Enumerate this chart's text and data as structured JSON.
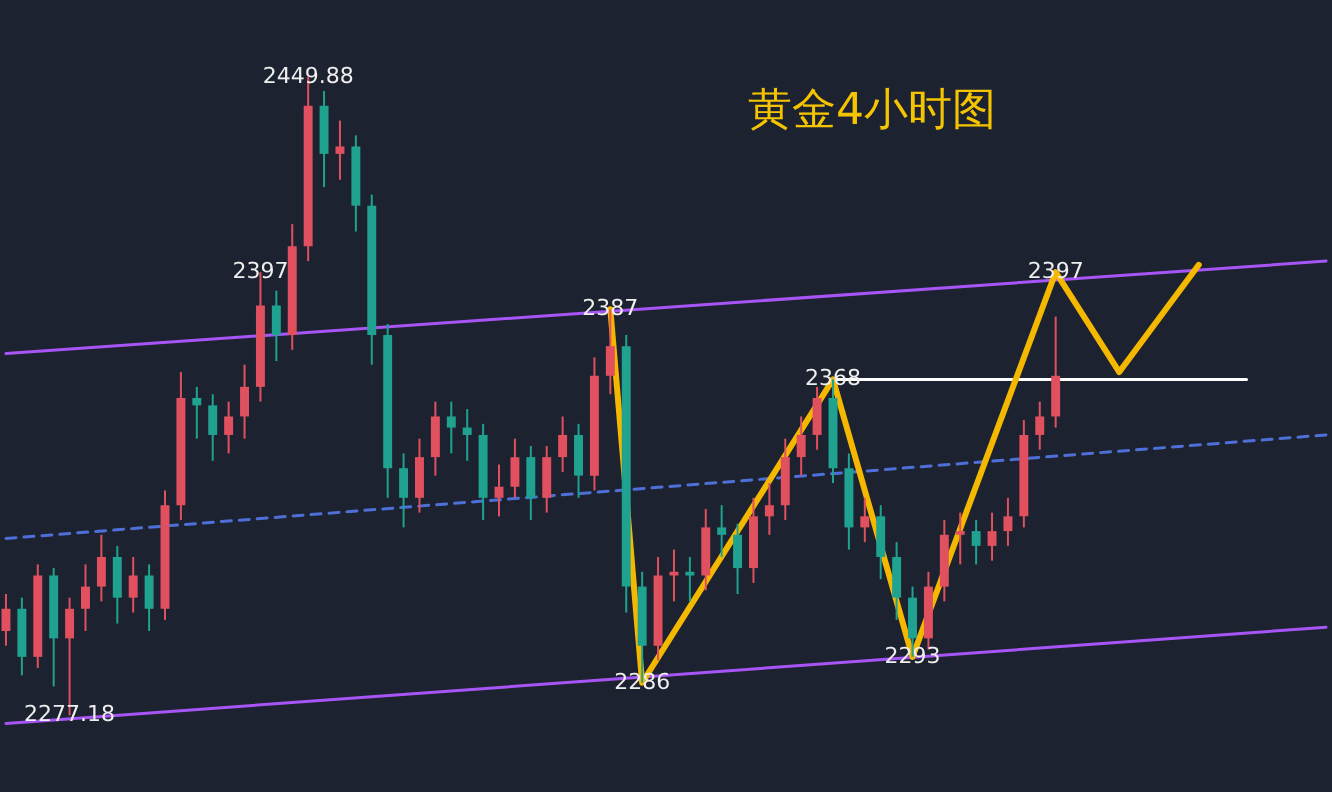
{
  "chart_data": {
    "type": "candlestick",
    "title": "黄金4小时图",
    "categories": [
      null,
      null,
      null,
      null,
      null,
      null,
      null,
      null,
      null,
      null,
      null,
      null,
      null,
      null,
      null,
      null,
      null,
      null,
      null,
      null,
      null,
      null,
      null,
      null,
      null,
      null,
      null,
      null,
      null,
      null,
      null,
      null,
      null,
      null,
      null,
      null,
      null,
      null,
      null,
      null,
      null,
      null,
      null,
      null,
      null,
      null,
      null,
      null,
      null,
      null,
      null,
      null,
      null,
      null,
      null,
      null,
      null,
      null,
      null,
      null,
      null,
      null,
      null,
      null,
      null,
      null,
      null,
      null,
      null,
      null,
      null,
      null,
      null,
      null,
      null,
      null,
      null,
      null,
      null,
      null,
      null,
      null,
      null,
      null
    ],
    "ohlc": [
      [
        2300,
        2310,
        2296,
        2306
      ],
      [
        2306,
        2309,
        2288,
        2293
      ],
      [
        2293,
        2318,
        2290,
        2315
      ],
      [
        2315,
        2317,
        2285,
        2298
      ],
      [
        2298,
        2309,
        2277.18,
        2306
      ],
      [
        2306,
        2318,
        2300,
        2312
      ],
      [
        2312,
        2326,
        2308,
        2320
      ],
      [
        2320,
        2323,
        2302,
        2309
      ],
      [
        2309,
        2320,
        2305,
        2315
      ],
      [
        2315,
        2318,
        2300,
        2306
      ],
      [
        2306,
        2338,
        2303,
        2334
      ],
      [
        2334,
        2370,
        2330,
        2363
      ],
      [
        2363,
        2366,
        2352,
        2361
      ],
      [
        2361,
        2364,
        2346,
        2353
      ],
      [
        2353,
        2362,
        2348,
        2358
      ],
      [
        2358,
        2372,
        2352,
        2366
      ],
      [
        2366,
        2397,
        2362,
        2388
      ],
      [
        2388,
        2392,
        2373,
        2380
      ],
      [
        2380,
        2410,
        2376,
        2404
      ],
      [
        2404,
        2449.88,
        2400,
        2442
      ],
      [
        2442,
        2446,
        2420,
        2429
      ],
      [
        2429,
        2438,
        2422,
        2431
      ],
      [
        2431,
        2434,
        2408,
        2415
      ],
      [
        2415,
        2418,
        2372,
        2380
      ],
      [
        2380,
        2383,
        2336,
        2344
      ],
      [
        2344,
        2348,
        2328,
        2336
      ],
      [
        2336,
        2352,
        2332,
        2347
      ],
      [
        2347,
        2362,
        2342,
        2358
      ],
      [
        2358,
        2362,
        2348,
        2355
      ],
      [
        2355,
        2360,
        2346,
        2353
      ],
      [
        2353,
        2356,
        2330,
        2336
      ],
      [
        2336,
        2345,
        2331,
        2339
      ],
      [
        2339,
        2352,
        2336,
        2347
      ],
      [
        2347,
        2350,
        2330,
        2336
      ],
      [
        2336,
        2350,
        2332,
        2347
      ],
      [
        2347,
        2358,
        2343,
        2353
      ],
      [
        2353,
        2356,
        2336,
        2342
      ],
      [
        2342,
        2374,
        2338,
        2369
      ],
      [
        2369,
        2387,
        2364,
        2377
      ],
      [
        2377,
        2380,
        2305,
        2312
      ],
      [
        2312,
        2316,
        2286,
        2296
      ],
      [
        2296,
        2320,
        2292,
        2315
      ],
      [
        2315,
        2322,
        2308,
        2316
      ],
      [
        2316,
        2320,
        2308,
        2315
      ],
      [
        2315,
        2333,
        2311,
        2328
      ],
      [
        2328,
        2334,
        2320,
        2326
      ],
      [
        2326,
        2329,
        2310,
        2317
      ],
      [
        2317,
        2336,
        2313,
        2331
      ],
      [
        2331,
        2340,
        2326,
        2334
      ],
      [
        2334,
        2352,
        2330,
        2347
      ],
      [
        2347,
        2358,
        2342,
        2353
      ],
      [
        2353,
        2366,
        2349,
        2363
      ],
      [
        2363,
        2368,
        2340,
        2344
      ],
      [
        2344,
        2348,
        2322,
        2328
      ],
      [
        2328,
        2336,
        2324,
        2331
      ],
      [
        2331,
        2334,
        2314,
        2320
      ],
      [
        2320,
        2324,
        2303,
        2309
      ],
      [
        2309,
        2312,
        2293,
        2298
      ],
      [
        2298,
        2316,
        2295,
        2312
      ],
      [
        2312,
        2330,
        2308,
        2326
      ],
      [
        2326,
        2332,
        2318,
        2327
      ],
      [
        2327,
        2330,
        2318,
        2323
      ],
      [
        2323,
        2332,
        2319,
        2327
      ],
      [
        2327,
        2336,
        2323,
        2331
      ],
      [
        2331,
        2357,
        2328,
        2353
      ],
      [
        2353,
        2362,
        2349,
        2358
      ],
      [
        2358,
        2385,
        2355,
        2369
      ],
      null,
      null,
      null,
      null,
      null,
      null,
      null,
      null,
      null,
      null,
      null,
      null,
      null,
      null,
      null,
      null,
      null
    ],
    "series": [
      {
        "type": "line",
        "color": "#a855f7",
        "values": [
          2375,
          null,
          null,
          null,
          null,
          null,
          null,
          null,
          null,
          null,
          null,
          null,
          null,
          null,
          null,
          null,
          null,
          null,
          null,
          null,
          null,
          null,
          null,
          null,
          null,
          null,
          null,
          null,
          null,
          null,
          null,
          null,
          null,
          null,
          null,
          null,
          null,
          null,
          null,
          null,
          null,
          null,
          null,
          null,
          null,
          null,
          null,
          null,
          null,
          null,
          null,
          null,
          null,
          null,
          null,
          null,
          null,
          null,
          null,
          null,
          null,
          null,
          null,
          null,
          null,
          null,
          null,
          null,
          null,
          null,
          null,
          null,
          null,
          null,
          null,
          null,
          null,
          null,
          null,
          null,
          null,
          null,
          null,
          2400
        ]
      },
      {
        "type": "line",
        "color": "#a855f7",
        "values": [
          2275,
          null,
          null,
          null,
          null,
          null,
          null,
          null,
          null,
          null,
          null,
          null,
          null,
          null,
          null,
          null,
          null,
          null,
          null,
          null,
          null,
          null,
          null,
          null,
          null,
          null,
          null,
          null,
          null,
          null,
          null,
          null,
          null,
          null,
          null,
          null,
          null,
          null,
          null,
          null,
          null,
          null,
          null,
          null,
          null,
          null,
          null,
          null,
          null,
          null,
          null,
          null,
          null,
          null,
          null,
          null,
          null,
          null,
          null,
          null,
          null,
          null,
          null,
          null,
          null,
          null,
          null,
          null,
          null,
          null,
          null,
          null,
          null,
          null,
          null,
          null,
          null,
          null,
          null,
          null,
          null,
          null,
          null,
          2301
        ]
      },
      {
        "type": "line",
        "color": "#4f6fd8",
        "line_style": "dashed",
        "values": [
          2325,
          null,
          null,
          null,
          null,
          null,
          null,
          null,
          null,
          null,
          null,
          null,
          null,
          null,
          null,
          null,
          null,
          null,
          null,
          null,
          null,
          null,
          null,
          null,
          null,
          null,
          null,
          null,
          null,
          null,
          null,
          null,
          null,
          null,
          null,
          null,
          null,
          null,
          null,
          null,
          null,
          null,
          null,
          null,
          null,
          null,
          null,
          null,
          null,
          null,
          null,
          null,
          null,
          null,
          null,
          null,
          null,
          null,
          null,
          null,
          null,
          null,
          null,
          null,
          null,
          null,
          null,
          null,
          null,
          null,
          null,
          null,
          null,
          null,
          null,
          null,
          null,
          null,
          null,
          null,
          null,
          null,
          null,
          2353
        ]
      },
      {
        "type": "line",
        "color": "#ffffff",
        "values": [
          null,
          null,
          null,
          null,
          null,
          null,
          null,
          null,
          null,
          null,
          null,
          null,
          null,
          null,
          null,
          null,
          null,
          null,
          null,
          null,
          null,
          null,
          null,
          null,
          null,
          null,
          null,
          null,
          null,
          null,
          null,
          null,
          null,
          null,
          null,
          null,
          null,
          null,
          null,
          null,
          null,
          null,
          null,
          null,
          null,
          null,
          null,
          null,
          null,
          null,
          null,
          null,
          2368,
          null,
          null,
          null,
          null,
          null,
          null,
          null,
          null,
          null,
          null,
          null,
          null,
          null,
          null,
          null,
          null,
          null,
          null,
          null,
          null,
          null,
          null,
          null,
          null,
          null,
          2368,
          null,
          null,
          null,
          null,
          null
        ]
      },
      {
        "type": "line",
        "color": "#f5b800",
        "values": [
          null,
          null,
          null,
          null,
          null,
          null,
          null,
          null,
          null,
          null,
          null,
          null,
          null,
          null,
          null,
          null,
          null,
          null,
          null,
          null,
          null,
          null,
          null,
          null,
          null,
          null,
          null,
          null,
          null,
          null,
          null,
          null,
          null,
          null,
          null,
          null,
          null,
          null,
          2387,
          null,
          2286,
          null,
          null,
          null,
          null,
          null,
          null,
          null,
          null,
          null,
          null,
          null,
          2368,
          null,
          null,
          null,
          null,
          2293,
          null,
          null,
          null,
          null,
          null,
          null,
          null,
          null,
          2397,
          null,
          null,
          null,
          2370,
          null,
          null,
          null,
          null,
          2399,
          null,
          null,
          null,
          null,
          null,
          null,
          null,
          null
        ]
      }
    ],
    "annotations": [
      {
        "text": "2449.88",
        "y": 2449.88
      },
      {
        "text": "2397",
        "y": 2397
      },
      {
        "text": "2387",
        "y": 2387
      },
      {
        "text": "2368",
        "y": 2368
      },
      {
        "text": "2286",
        "y": 2286
      },
      {
        "text": "2293",
        "y": 2293
      },
      {
        "text": "2397",
        "y": 2397
      },
      {
        "text": "2277.18",
        "y": 2277.18
      }
    ],
    "marker": "none"
  }
}
